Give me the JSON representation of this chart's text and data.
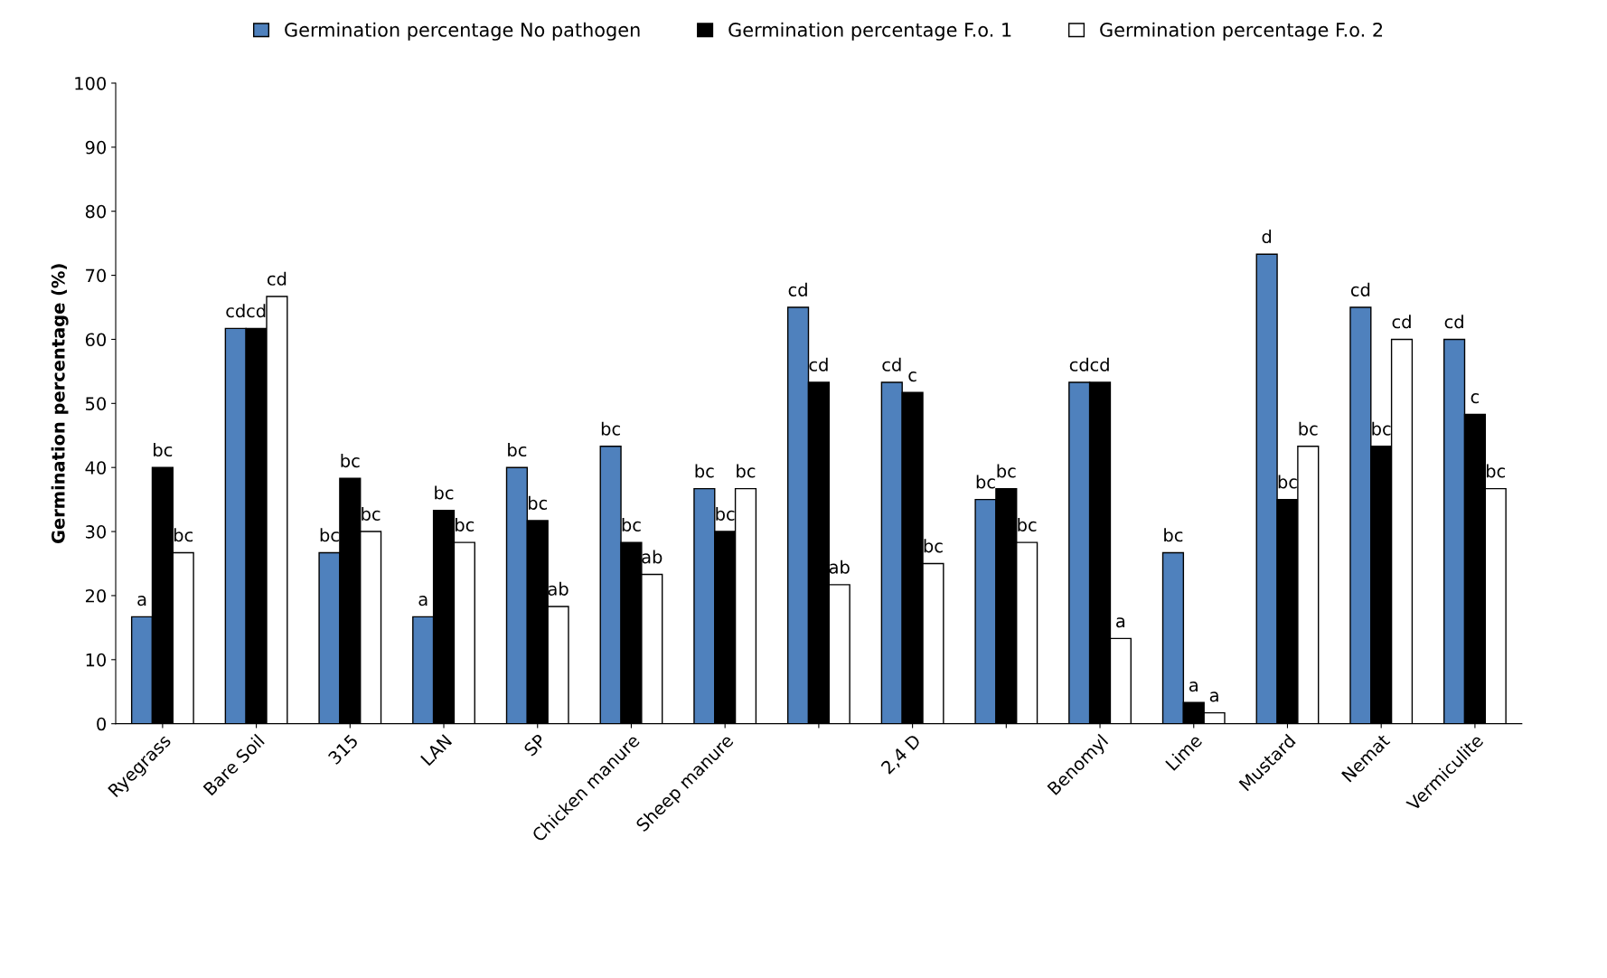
{
  "chart_data": {
    "type": "bar",
    "ylabel": "Germination percentage (%)",
    "categories": [
      "Ryegrass",
      "Bare Soil",
      "315",
      "LAN",
      "SP",
      "Chicken manure",
      "Sheep manure",
      null,
      "2,4 D",
      null,
      "Benomyl",
      "Lime",
      "Mustard",
      "Nemat",
      "Vermiculite"
    ],
    "series": [
      {
        "name": "Germination percentage No pathogen",
        "color": "#4f81bd",
        "values": [
          16.7,
          61.7,
          26.7,
          16.7,
          40,
          43.3,
          36.7,
          65,
          53.3,
          35,
          53.3,
          26.7,
          73.3,
          65,
          60
        ],
        "value_labels": [
          "a",
          "cd",
          "bc",
          "a",
          "bc",
          "bc",
          "bc",
          "cd",
          "cd",
          "bc",
          "cd",
          "bc",
          "d",
          "cd",
          "cd"
        ]
      },
      {
        "name": "Germination percentage F.o. 1",
        "color": "#000000",
        "values": [
          40,
          61.7,
          38.3,
          33.3,
          31.7,
          28.3,
          30,
          53.3,
          51.7,
          36.7,
          53.3,
          3.3,
          35,
          43.3,
          48.3
        ],
        "value_labels": [
          "bc",
          "cd",
          "bc",
          "bc",
          "bc",
          "bc",
          "bc",
          "cd",
          "c",
          "bc",
          "cd",
          "a",
          "bc",
          "bc",
          "c"
        ]
      },
      {
        "name": "Germination percentage F.o. 2",
        "color": "#ffffff",
        "values": [
          26.7,
          66.7,
          30,
          28.3,
          18.3,
          23.3,
          36.7,
          21.7,
          25,
          28.3,
          13.3,
          1.7,
          43.3,
          60,
          36.7
        ],
        "value_labels": [
          "bc",
          "cd",
          "bc",
          "bc",
          "ab",
          "ab",
          "bc",
          "ab",
          "bc",
          "bc",
          "a",
          "a",
          "bc",
          "cd",
          "bc"
        ]
      }
    ],
    "ylim": [
      0,
      100
    ],
    "yticks": [
      0,
      10,
      20,
      30,
      40,
      50,
      60,
      70,
      80,
      90,
      100
    ],
    "grid": false,
    "legend": "top"
  }
}
